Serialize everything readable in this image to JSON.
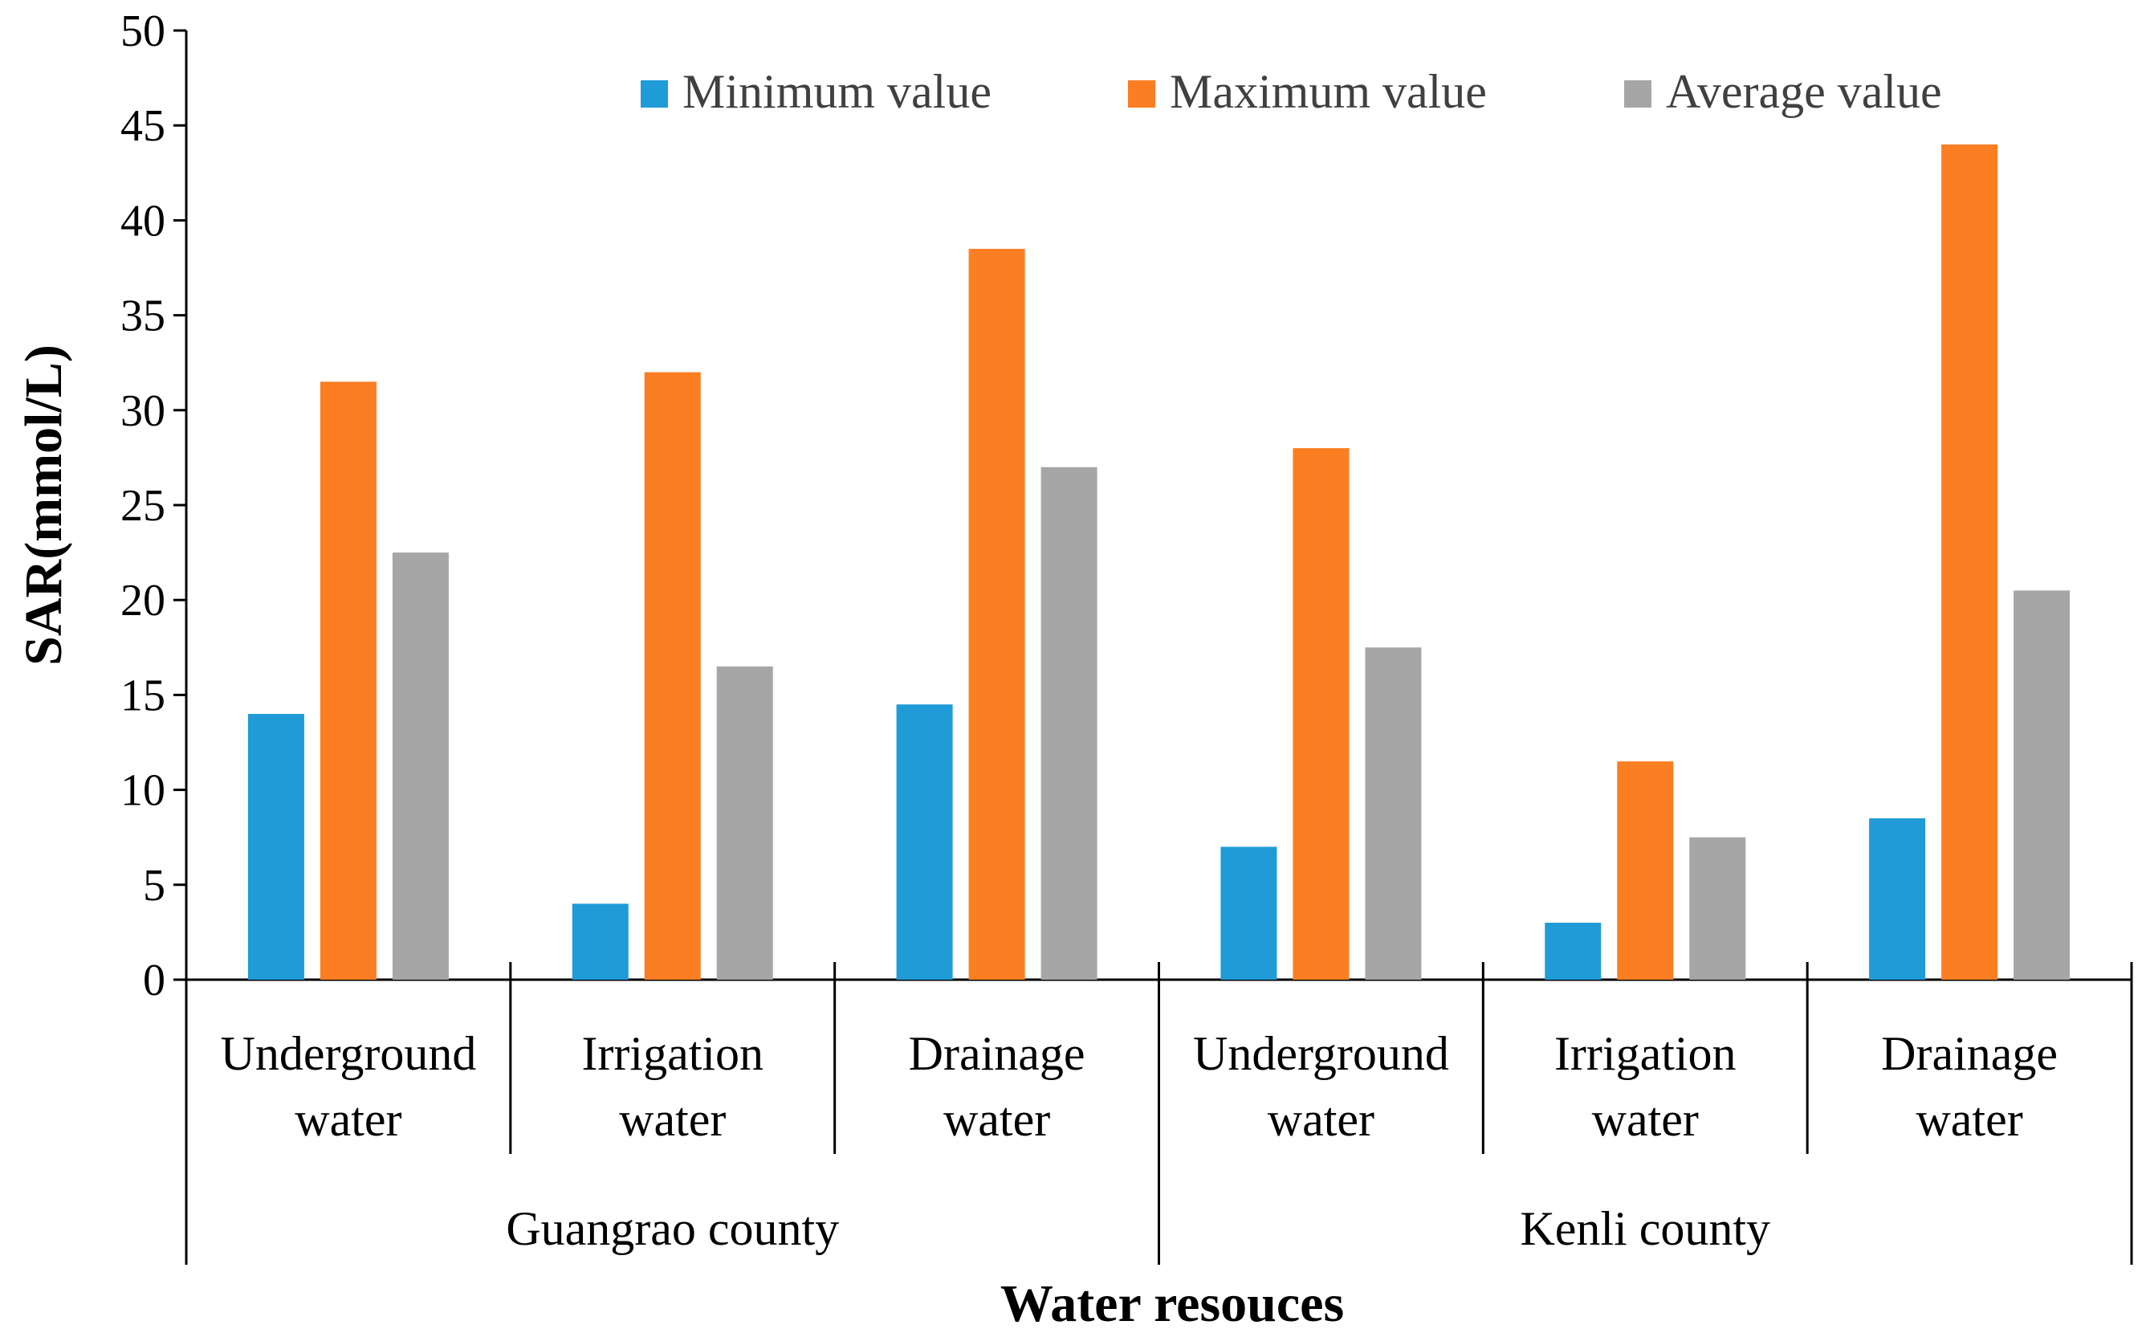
{
  "chart_data": {
    "type": "bar",
    "title": "",
    "xlabel": "Water resouces",
    "ylabel": "SAR(mmol/L)",
    "ylim": [
      0,
      50
    ],
    "yticks": [
      0,
      5,
      10,
      15,
      20,
      25,
      30,
      35,
      40,
      45,
      50
    ],
    "grid": false,
    "legend_position": "top",
    "groups": [
      {
        "label": "Guangrao county",
        "categories": [
          [
            "Underground",
            "water"
          ],
          [
            "Irrigation",
            "water"
          ],
          [
            "Drainage",
            "water"
          ]
        ]
      },
      {
        "label": "Kenli county",
        "categories": [
          [
            "Underground",
            "water"
          ],
          [
            "Irrigation",
            "water"
          ],
          [
            "Drainage",
            "water"
          ]
        ]
      }
    ],
    "series": [
      {
        "name": "Minimum value",
        "color": "#1f9bd7",
        "values": [
          14,
          4,
          14.5,
          7,
          3,
          8.5
        ]
      },
      {
        "name": "Maximum value",
        "color": "#fb7e23",
        "values": [
          31.5,
          32,
          38.5,
          28,
          11.5,
          44
        ]
      },
      {
        "name": "Average value",
        "color": "#a6a6a6",
        "values": [
          22.5,
          16.5,
          27,
          17.5,
          7.5,
          20.5
        ]
      }
    ]
  }
}
